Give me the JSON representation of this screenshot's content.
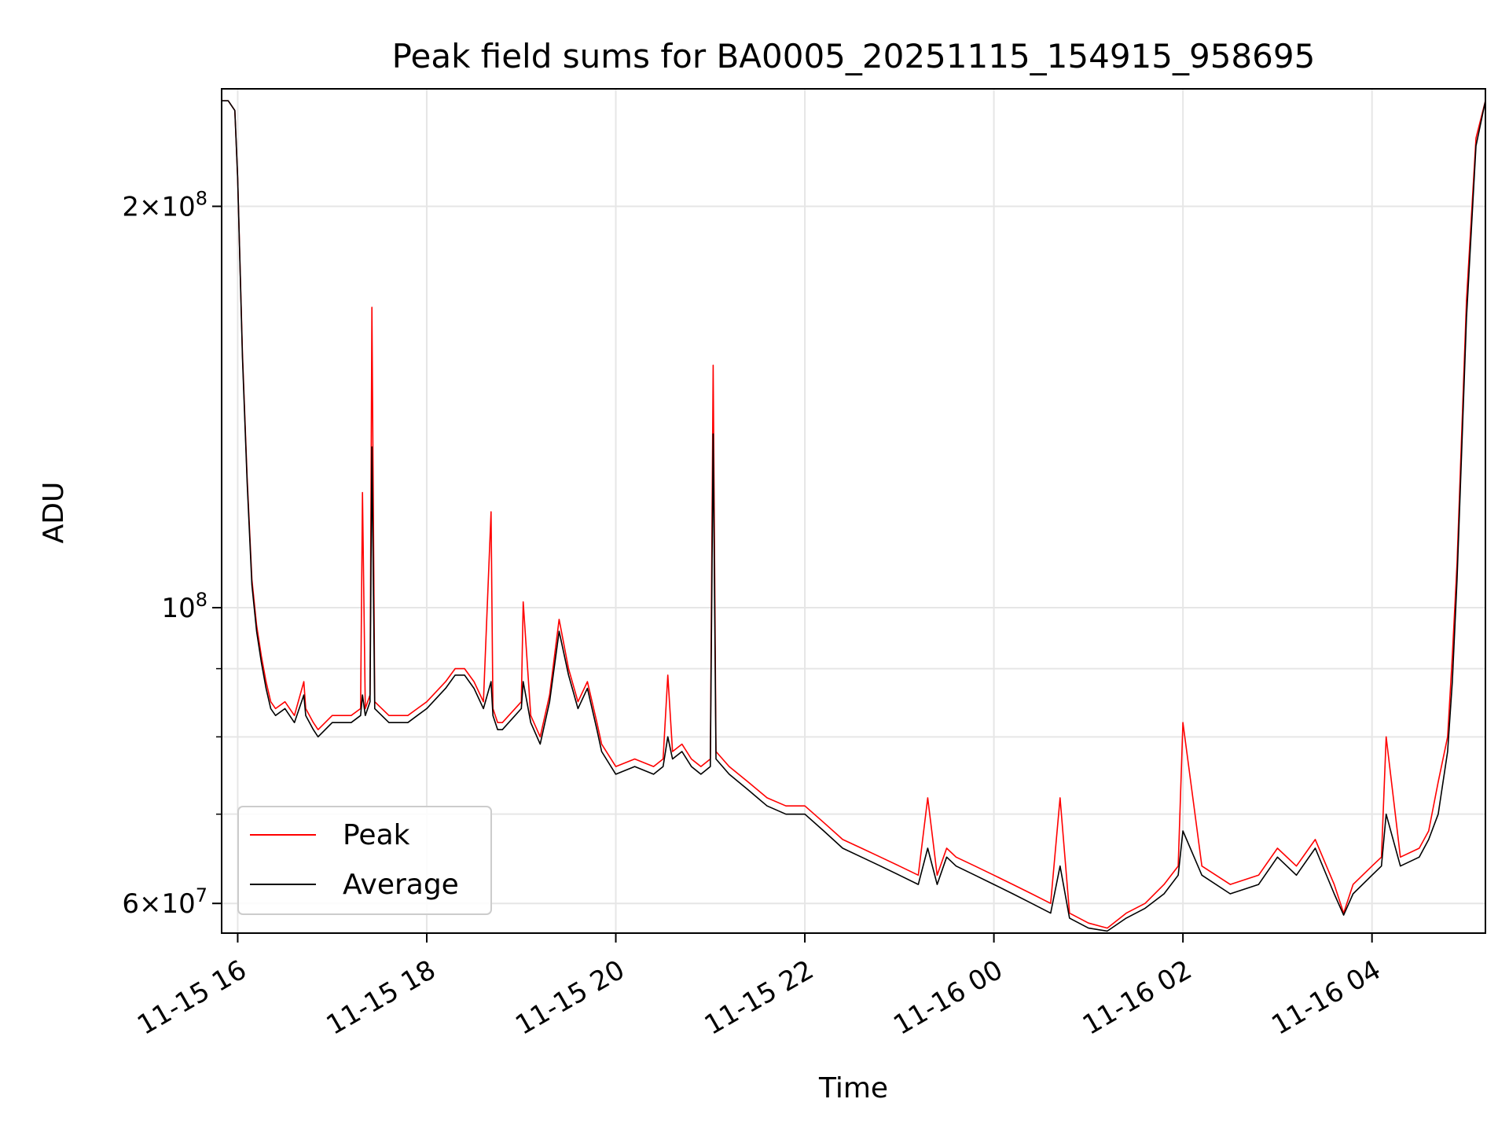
{
  "chart_data": {
    "type": "line",
    "title": "Peak field sums for BA0005_20251115_154915_958695",
    "xlabel": "Time",
    "ylabel": "ADU",
    "yscale": "log",
    "ylim": [
      57000000,
      245000000
    ],
    "xlim_hours": [
      15.83,
      29.2
    ],
    "x_ticks": [
      {
        "hour": 16,
        "label": "11-15 16"
      },
      {
        "hour": 18,
        "label": "11-15 18"
      },
      {
        "hour": 20,
        "label": "11-15 20"
      },
      {
        "hour": 22,
        "label": "11-15 22"
      },
      {
        "hour": 24,
        "label": "11-16 00"
      },
      {
        "hour": 26,
        "label": "11-16 02"
      },
      {
        "hour": 28,
        "label": "11-16 04"
      }
    ],
    "y_ticks": [
      {
        "value": 60000000,
        "base": "6",
        "exp": "7"
      },
      {
        "value": 100000000,
        "base": "",
        "exp": "8"
      },
      {
        "value": 200000000,
        "base": "2",
        "exp": "8"
      }
    ],
    "y_minor_ticks": [
      70000000,
      80000000,
      90000000
    ],
    "legend": {
      "position": "lower-left",
      "entries": [
        "Peak",
        "Average"
      ]
    },
    "colors": {
      "Peak": "#ff0000",
      "Average": "#000000"
    },
    "series": [
      {
        "name": "Peak",
        "x": [
          15.83,
          15.9,
          15.97,
          16.0,
          16.05,
          16.1,
          16.15,
          16.2,
          16.25,
          16.3,
          16.35,
          16.4,
          16.5,
          16.6,
          16.7,
          16.72,
          16.8,
          16.85,
          17.0,
          17.2,
          17.3,
          17.32,
          17.35,
          17.4,
          17.42,
          17.45,
          17.6,
          17.8,
          17.9,
          18.0,
          18.2,
          18.3,
          18.4,
          18.5,
          18.6,
          18.68,
          18.7,
          18.75,
          18.8,
          19.0,
          19.02,
          19.1,
          19.2,
          19.3,
          19.4,
          19.5,
          19.6,
          19.7,
          19.8,
          19.85,
          20.0,
          20.2,
          20.4,
          20.5,
          20.55,
          20.6,
          20.7,
          20.8,
          20.9,
          21.0,
          21.03,
          21.06,
          21.2,
          21.4,
          21.6,
          21.8,
          22.0,
          22.2,
          22.4,
          22.6,
          22.8,
          23.0,
          23.2,
          23.3,
          23.4,
          23.5,
          23.6,
          23.8,
          24.0,
          24.2,
          24.4,
          24.6,
          24.7,
          24.8,
          25.0,
          25.2,
          25.4,
          25.6,
          25.8,
          25.95,
          26.0,
          26.2,
          26.5,
          26.8,
          27.0,
          27.2,
          27.4,
          27.6,
          27.7,
          27.8,
          28.0,
          28.1,
          28.15,
          28.3,
          28.5,
          28.6,
          28.7,
          28.8,
          28.85,
          28.9,
          29.0,
          29.1,
          29.2
        ],
        "y": [
          240000000,
          240000000,
          236000000,
          210000000,
          155000000,
          125000000,
          105000000,
          97000000,
          92000000,
          88000000,
          85000000,
          84000000,
          85000000,
          83000000,
          88000000,
          84000000,
          82000000,
          81000000,
          83000000,
          83000000,
          84000000,
          122000000,
          84000000,
          86000000,
          168000000,
          85000000,
          83000000,
          83000000,
          84000000,
          85000000,
          88000000,
          90000000,
          90000000,
          88000000,
          85000000,
          118000000,
          84000000,
          82000000,
          82000000,
          85000000,
          101000000,
          83000000,
          80000000,
          86000000,
          98000000,
          90000000,
          85000000,
          88000000,
          82000000,
          79000000,
          76000000,
          77000000,
          76000000,
          77000000,
          89000000,
          78000000,
          79000000,
          77000000,
          76000000,
          77000000,
          152000000,
          78000000,
          76000000,
          74000000,
          72000000,
          71000000,
          71000000,
          69000000,
          67000000,
          66000000,
          65000000,
          64000000,
          63000000,
          72000000,
          63000000,
          66000000,
          65000000,
          64000000,
          63000000,
          62000000,
          61000000,
          60000000,
          72000000,
          59000000,
          58000000,
          57500000,
          59000000,
          60000000,
          62000000,
          64000000,
          82000000,
          64000000,
          62000000,
          63000000,
          66000000,
          64000000,
          67000000,
          62000000,
          59000000,
          62000000,
          64000000,
          65000000,
          80000000,
          65000000,
          66000000,
          68000000,
          74000000,
          80000000,
          92000000,
          108000000,
          170000000,
          225000000,
          240000000
        ]
      },
      {
        "name": "Average",
        "x": [
          15.83,
          15.9,
          15.97,
          16.0,
          16.05,
          16.1,
          16.15,
          16.2,
          16.25,
          16.3,
          16.35,
          16.4,
          16.5,
          16.6,
          16.7,
          16.72,
          16.8,
          16.85,
          17.0,
          17.2,
          17.3,
          17.32,
          17.35,
          17.4,
          17.42,
          17.45,
          17.6,
          17.8,
          17.9,
          18.0,
          18.2,
          18.3,
          18.4,
          18.5,
          18.6,
          18.68,
          18.7,
          18.75,
          18.8,
          19.0,
          19.02,
          19.1,
          19.2,
          19.3,
          19.4,
          19.5,
          19.6,
          19.7,
          19.8,
          19.85,
          20.0,
          20.2,
          20.4,
          20.5,
          20.55,
          20.6,
          20.7,
          20.8,
          20.9,
          21.0,
          21.03,
          21.06,
          21.2,
          21.4,
          21.6,
          21.8,
          22.0,
          22.2,
          22.4,
          22.6,
          22.8,
          23.0,
          23.2,
          23.3,
          23.4,
          23.5,
          23.6,
          23.8,
          24.0,
          24.2,
          24.4,
          24.6,
          24.7,
          24.8,
          25.0,
          25.2,
          25.4,
          25.6,
          25.8,
          25.95,
          26.0,
          26.2,
          26.5,
          26.8,
          27.0,
          27.2,
          27.4,
          27.6,
          27.7,
          27.8,
          28.0,
          28.1,
          28.15,
          28.3,
          28.5,
          28.6,
          28.7,
          28.8,
          28.85,
          28.9,
          29.0,
          29.1,
          29.2
        ],
        "y": [
          240000000,
          240000000,
          236000000,
          210000000,
          154000000,
          124000000,
          104000000,
          96000000,
          91000000,
          87000000,
          84000000,
          83000000,
          84000000,
          82000000,
          86000000,
          83000000,
          81000000,
          80000000,
          82000000,
          82000000,
          83000000,
          86000000,
          83000000,
          85000000,
          132000000,
          84000000,
          82000000,
          82000000,
          83000000,
          84000000,
          87000000,
          89000000,
          89000000,
          87000000,
          84000000,
          88000000,
          83000000,
          81000000,
          81000000,
          84000000,
          88000000,
          82000000,
          79000000,
          85000000,
          96000000,
          89000000,
          84000000,
          87000000,
          81000000,
          78000000,
          75000000,
          76000000,
          75000000,
          76000000,
          80000000,
          77000000,
          78000000,
          76000000,
          75000000,
          76000000,
          135000000,
          77000000,
          75000000,
          73000000,
          71000000,
          70000000,
          70000000,
          68000000,
          66000000,
          65000000,
          64000000,
          63000000,
          62000000,
          66000000,
          62000000,
          65000000,
          64000000,
          63000000,
          62000000,
          61000000,
          60000000,
          59000000,
          64000000,
          58500000,
          57500000,
          57200000,
          58500000,
          59500000,
          61000000,
          63000000,
          68000000,
          63000000,
          61000000,
          62000000,
          65000000,
          63000000,
          66000000,
          61000000,
          58800000,
          61000000,
          63000000,
          64000000,
          70000000,
          64000000,
          65000000,
          67000000,
          70000000,
          78000000,
          88000000,
          105000000,
          165000000,
          222000000,
          240000000
        ]
      }
    ]
  }
}
